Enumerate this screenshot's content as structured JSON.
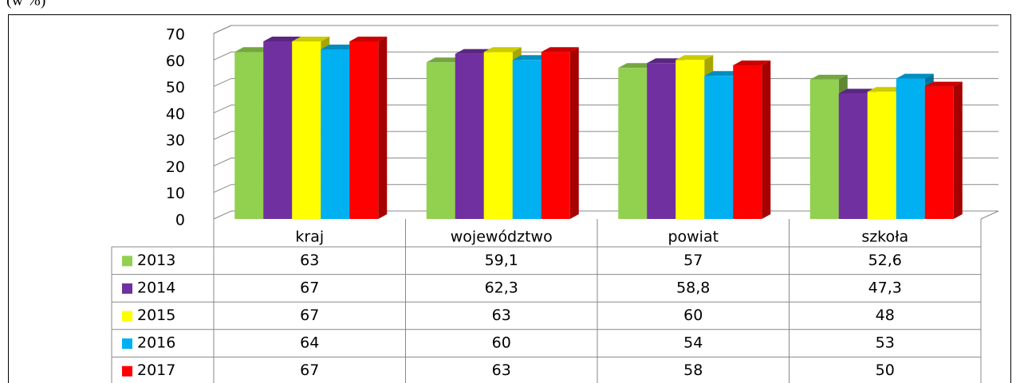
{
  "chart_data": {
    "type": "bar",
    "subtitle": "(w %)",
    "categories": [
      "kraj",
      "województwo",
      "powiat",
      "szkoła"
    ],
    "series": [
      {
        "name": "2013",
        "color": "#92d050",
        "values": [
          63,
          59.1,
          57,
          52.6
        ],
        "value_labels": [
          "63",
          "59,1",
          "57",
          "52,6"
        ]
      },
      {
        "name": "2014",
        "color": "#7030a0",
        "values": [
          67,
          62.3,
          58.8,
          47.3
        ],
        "value_labels": [
          "67",
          "62,3",
          "58,8",
          "47,3"
        ]
      },
      {
        "name": "2015",
        "color": "#ffff00",
        "values": [
          67,
          63,
          60,
          48
        ],
        "value_labels": [
          "67",
          "63",
          "60",
          "48"
        ]
      },
      {
        "name": "2016",
        "color": "#00b0f0",
        "values": [
          64,
          60,
          54,
          53
        ],
        "value_labels": [
          "64",
          "60",
          "54",
          "53"
        ]
      },
      {
        "name": "2017",
        "color": "#ff0000",
        "values": [
          67,
          63,
          58,
          50
        ],
        "value_labels": [
          "67",
          "63",
          "58",
          "50"
        ]
      }
    ],
    "ylim": [
      0,
      70
    ],
    "yticks": [
      0,
      10,
      20,
      30,
      40,
      50,
      60,
      70
    ],
    "grid": true,
    "data_table": true
  }
}
